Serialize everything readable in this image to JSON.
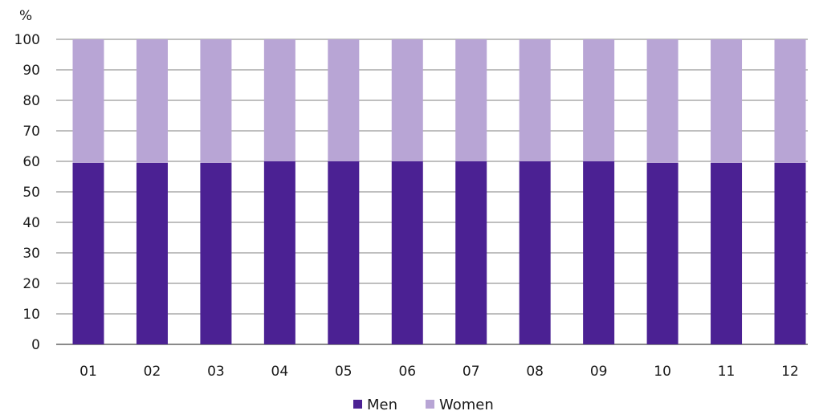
{
  "chart_data": {
    "type": "bar",
    "stacked": true,
    "title": "",
    "xlabel": "",
    "ylabel": "%",
    "ylim": [
      0,
      100
    ],
    "yticks": [
      0,
      10,
      20,
      30,
      40,
      50,
      60,
      70,
      80,
      90,
      100
    ],
    "categories": [
      "01",
      "02",
      "03",
      "04",
      "05",
      "06",
      "07",
      "08",
      "09",
      "10",
      "11",
      "12"
    ],
    "series": [
      {
        "name": "Men",
        "color": "#4b2193",
        "values": [
          59.5,
          59.5,
          59.5,
          60,
          60,
          60,
          60,
          60,
          60,
          59.5,
          59.5,
          59.5
        ]
      },
      {
        "name": "Women",
        "color": "#b8a5d5",
        "values": [
          40.5,
          40.5,
          40.5,
          40,
          40,
          40,
          40,
          40,
          40,
          40.5,
          40.5,
          40.5
        ]
      }
    ],
    "grid": "horizontal",
    "legend_position": "bottom-center"
  }
}
